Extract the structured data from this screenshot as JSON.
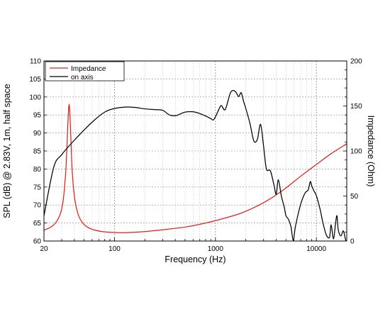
{
  "chart_data": {
    "type": "line",
    "xlabel": "Frequency (Hz)",
    "ylabel_left": "SPL (dB) @ 2.83V, 1m, half space",
    "ylabel_right": "Impedance (Ohm)",
    "x_scale": "log",
    "xlim": [
      20,
      20000
    ],
    "ylim_left": [
      60,
      110
    ],
    "ylim_right": [
      0,
      200
    ],
    "grid": true,
    "legend_placement": "top-left",
    "x_tick_labels": [
      "20",
      "100",
      "1000",
      "10000"
    ],
    "x_tick_values": [
      20,
      100,
      1000,
      10000
    ],
    "y_left_ticks": [
      60,
      65,
      70,
      75,
      80,
      85,
      90,
      95,
      100,
      105,
      110
    ],
    "y_right_ticks": [
      0,
      50,
      100,
      150,
      200
    ],
    "series": [
      {
        "name": "Impedance",
        "color": "#e0211c",
        "axis": "right",
        "points": [
          [
            20,
            12
          ],
          [
            23,
            15
          ],
          [
            26,
            20
          ],
          [
            29,
            30
          ],
          [
            31,
            45
          ],
          [
            33,
            80
          ],
          [
            34.5,
            130
          ],
          [
            35.5,
            152
          ],
          [
            36.5,
            130
          ],
          [
            38,
            80
          ],
          [
            40,
            50
          ],
          [
            43,
            32
          ],
          [
            47,
            22
          ],
          [
            53,
            16
          ],
          [
            62,
            12.5
          ],
          [
            75,
            10.5
          ],
          [
            90,
            9.7
          ],
          [
            110,
            9.3
          ],
          [
            140,
            9.4
          ],
          [
            200,
            10.5
          ],
          [
            300,
            12.5
          ],
          [
            500,
            15.5
          ],
          [
            800,
            20
          ],
          [
            1200,
            25
          ],
          [
            1800,
            31
          ],
          [
            2500,
            38
          ],
          [
            3500,
            47
          ],
          [
            5000,
            59
          ],
          [
            7000,
            72
          ],
          [
            10000,
            85
          ],
          [
            14000,
            97
          ],
          [
            20000,
            108
          ]
        ]
      },
      {
        "name": "on axis",
        "color": "#000000",
        "axis": "left",
        "points": [
          [
            20,
            67
          ],
          [
            25,
            80.5
          ],
          [
            30,
            84
          ],
          [
            40,
            88
          ],
          [
            60,
            93
          ],
          [
            80,
            95.8
          ],
          [
            100,
            96.8
          ],
          [
            130,
            97.2
          ],
          [
            160,
            97.1
          ],
          [
            200,
            96.7
          ],
          [
            250,
            96.5
          ],
          [
            300,
            96.3
          ],
          [
            350,
            95
          ],
          [
            400,
            94.8
          ],
          [
            450,
            95.3
          ],
          [
            500,
            95.8
          ],
          [
            600,
            95.9
          ],
          [
            700,
            95.4
          ],
          [
            800,
            94.7
          ],
          [
            900,
            94
          ],
          [
            950,
            93.6
          ],
          [
            1000,
            94.5
          ],
          [
            1100,
            97
          ],
          [
            1150,
            97.6
          ],
          [
            1250,
            96.5
          ],
          [
            1400,
            101
          ],
          [
            1500,
            101.8
          ],
          [
            1600,
            101.3
          ],
          [
            1700,
            100.1
          ],
          [
            1800,
            101.2
          ],
          [
            1900,
            98.8
          ],
          [
            2000,
            96.8
          ],
          [
            2200,
            92.6
          ],
          [
            2400,
            87.8
          ],
          [
            2600,
            88.2
          ],
          [
            2800,
            92.4
          ],
          [
            3000,
            86.3
          ],
          [
            3200,
            80
          ],
          [
            3500,
            79.5
          ],
          [
            3800,
            75.6
          ],
          [
            4000,
            73
          ],
          [
            4200,
            77
          ],
          [
            4500,
            72.5
          ],
          [
            4800,
            69.5
          ],
          [
            5000,
            67
          ],
          [
            5300,
            66
          ],
          [
            5600,
            64
          ],
          [
            5900,
            60.2
          ],
          [
            6200,
            64
          ],
          [
            6800,
            69
          ],
          [
            7300,
            71.8
          ],
          [
            7800,
            73.5
          ],
          [
            8300,
            74.2
          ],
          [
            8700,
            76.5
          ],
          [
            9000,
            75.3
          ],
          [
            9500,
            73.8
          ],
          [
            10000,
            72.6
          ],
          [
            11000,
            68.3
          ],
          [
            11500,
            65.6
          ],
          [
            12500,
            61.8
          ],
          [
            13500,
            61
          ],
          [
            14000,
            64.5
          ],
          [
            14800,
            60.6
          ],
          [
            15500,
            65
          ],
          [
            16000,
            67
          ],
          [
            16500,
            63
          ],
          [
            17500,
            61.4
          ],
          [
            18500,
            62.8
          ],
          [
            19500,
            60.3
          ],
          [
            20000,
            60
          ]
        ]
      }
    ]
  }
}
